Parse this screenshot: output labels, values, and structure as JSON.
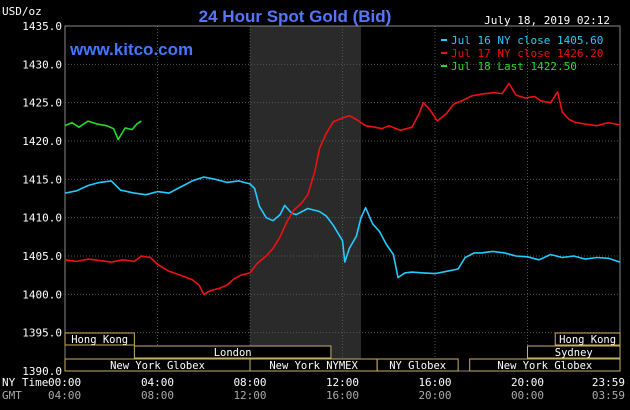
{
  "chart_data": {
    "type": "line",
    "title": "24 Hour Spot Gold (Bid)",
    "ylabel": "USD/oz",
    "source": "www.kitco.com",
    "timestamp": "July 18, 2019 02:12",
    "ylim": [
      1390,
      1435
    ],
    "yticks": [
      "1435.0",
      "1430.0",
      "1425.0",
      "1420.0",
      "1415.0",
      "1410.0",
      "1405.0",
      "1400.0",
      "1395.0",
      "1390.0"
    ],
    "xlim": [
      0,
      24
    ],
    "time_rows": [
      {
        "label": "NY Time",
        "ticks": [
          "00:00",
          "04:00",
          "08:00",
          "12:00",
          "16:00",
          "20:00",
          "23:59"
        ]
      },
      {
        "label": "GMT",
        "ticks": [
          "04:00",
          "08:00",
          "12:00",
          "16:00",
          "20:00",
          "00:00",
          "03:59"
        ]
      }
    ],
    "highlight_hours": [
      8,
      12.8
    ],
    "sessions": [
      {
        "label": "Hong Kong",
        "row": 0,
        "segments": [
          [
            0,
            3
          ]
        ]
      },
      {
        "label": "Hong Kong",
        "row": 0,
        "segments": [
          [
            21.2,
            24
          ]
        ]
      },
      {
        "label": "London",
        "row": 1,
        "segments": [
          [
            3,
            11.5
          ]
        ]
      },
      {
        "label": "Sydney",
        "row": 1,
        "segments": [
          [
            20,
            24
          ]
        ]
      },
      {
        "label": "New York Globex",
        "row": 2,
        "segments": [
          [
            0,
            8
          ]
        ]
      },
      {
        "label": "New York NYMEX",
        "row": 2,
        "segments": [
          [
            8,
            13.5
          ]
        ]
      },
      {
        "label": "NY Globex",
        "row": 2,
        "segments": [
          [
            13.5,
            17
          ]
        ]
      },
      {
        "label": "New York Globex",
        "row": 2,
        "segments": [
          [
            17.5,
            24
          ]
        ]
      }
    ],
    "series": [
      {
        "name": "Jul 16 NY close 1405.60",
        "color": "#22ccff",
        "points": [
          [
            0,
            1413.2
          ],
          [
            0.5,
            1413.5
          ],
          [
            1,
            1414.2
          ],
          [
            1.5,
            1414.6
          ],
          [
            2,
            1414.8
          ],
          [
            2.4,
            1413.6
          ],
          [
            3,
            1413.2
          ],
          [
            3.5,
            1413.0
          ],
          [
            4,
            1413.4
          ],
          [
            4.5,
            1413.2
          ],
          [
            5,
            1414.0
          ],
          [
            5.5,
            1414.8
          ],
          [
            6,
            1415.3
          ],
          [
            6.5,
            1415.0
          ],
          [
            7,
            1414.6
          ],
          [
            7.5,
            1414.8
          ],
          [
            8,
            1414.4
          ],
          [
            8.2,
            1413.8
          ],
          [
            8.4,
            1411.5
          ],
          [
            8.7,
            1410.0
          ],
          [
            9,
            1409.6
          ],
          [
            9.3,
            1410.4
          ],
          [
            9.5,
            1411.6
          ],
          [
            9.8,
            1410.6
          ],
          [
            10,
            1410.4
          ],
          [
            10.5,
            1411.2
          ],
          [
            11,
            1410.8
          ],
          [
            11.3,
            1410.2
          ],
          [
            11.6,
            1409.0
          ],
          [
            12,
            1407.0
          ],
          [
            12.1,
            1404.2
          ],
          [
            12.3,
            1406.0
          ],
          [
            12.6,
            1407.6
          ],
          [
            12.8,
            1410.0
          ],
          [
            13.0,
            1411.3
          ],
          [
            13.3,
            1409.2
          ],
          [
            13.6,
            1408.2
          ],
          [
            13.9,
            1406.5
          ],
          [
            14.2,
            1405.2
          ],
          [
            14.4,
            1402.2
          ],
          [
            14.7,
            1402.8
          ],
          [
            15,
            1402.9
          ],
          [
            15.5,
            1402.8
          ],
          [
            16,
            1402.7
          ],
          [
            16.5,
            1403.0
          ],
          [
            17,
            1403.3
          ],
          [
            17.3,
            1404.8
          ],
          [
            17.7,
            1405.4
          ],
          [
            18,
            1405.4
          ],
          [
            18.5,
            1405.6
          ],
          [
            19,
            1405.4
          ],
          [
            19.5,
            1405.0
          ],
          [
            20,
            1404.9
          ],
          [
            20.5,
            1404.5
          ],
          [
            21,
            1405.2
          ],
          [
            21.5,
            1404.8
          ],
          [
            22,
            1405.0
          ],
          [
            22.5,
            1404.6
          ],
          [
            23,
            1404.8
          ],
          [
            23.5,
            1404.7
          ],
          [
            24,
            1404.2
          ]
        ]
      },
      {
        "name": "Jul 17 NY close 1426.20",
        "color": "#ee1111",
        "points": [
          [
            0,
            1404.5
          ],
          [
            0.5,
            1404.3
          ],
          [
            1,
            1404.6
          ],
          [
            1.5,
            1404.4
          ],
          [
            2,
            1404.2
          ],
          [
            2.5,
            1404.5
          ],
          [
            3,
            1404.3
          ],
          [
            3.3,
            1405.0
          ],
          [
            3.7,
            1404.8
          ],
          [
            4,
            1403.9
          ],
          [
            4.5,
            1403.0
          ],
          [
            5,
            1402.5
          ],
          [
            5.5,
            1401.9
          ],
          [
            5.8,
            1401.2
          ],
          [
            6,
            1400.0
          ],
          [
            6.3,
            1400.5
          ],
          [
            6.7,
            1400.8
          ],
          [
            7,
            1401.2
          ],
          [
            7.3,
            1402.0
          ],
          [
            7.6,
            1402.5
          ],
          [
            8,
            1402.8
          ],
          [
            8.3,
            1404.0
          ],
          [
            8.7,
            1405.0
          ],
          [
            9,
            1406.0
          ],
          [
            9.3,
            1407.5
          ],
          [
            9.6,
            1409.5
          ],
          [
            9.9,
            1411.0
          ],
          [
            10.2,
            1411.8
          ],
          [
            10.5,
            1413.0
          ],
          [
            10.8,
            1416.0
          ],
          [
            11,
            1419.0
          ],
          [
            11.3,
            1421.0
          ],
          [
            11.6,
            1422.5
          ],
          [
            12,
            1423.0
          ],
          [
            12.3,
            1423.3
          ],
          [
            12.6,
            1422.8
          ],
          [
            13,
            1422.0
          ],
          [
            13.4,
            1421.8
          ],
          [
            13.7,
            1421.6
          ],
          [
            14,
            1422.0
          ],
          [
            14.5,
            1421.4
          ],
          [
            15,
            1421.8
          ],
          [
            15.3,
            1423.5
          ],
          [
            15.5,
            1425.0
          ],
          [
            15.8,
            1424.0
          ],
          [
            16.1,
            1422.6
          ],
          [
            16.5,
            1423.6
          ],
          [
            16.8,
            1424.8
          ],
          [
            17.2,
            1425.3
          ],
          [
            17.6,
            1425.9
          ],
          [
            18,
            1426.1
          ],
          [
            18.5,
            1426.3
          ],
          [
            18.9,
            1426.2
          ],
          [
            19.2,
            1427.5
          ],
          [
            19.5,
            1426.0
          ],
          [
            19.9,
            1425.6
          ],
          [
            20.3,
            1425.8
          ],
          [
            20.6,
            1425.2
          ],
          [
            21,
            1425.0
          ],
          [
            21.3,
            1426.4
          ],
          [
            21.5,
            1423.8
          ],
          [
            21.8,
            1422.8
          ],
          [
            22.1,
            1422.4
          ],
          [
            22.5,
            1422.2
          ],
          [
            23,
            1422.0
          ],
          [
            23.5,
            1422.4
          ],
          [
            24,
            1422.1
          ]
        ]
      },
      {
        "name": "Jul 18 Last 1422.50",
        "color": "#22dd22",
        "points": [
          [
            0,
            1422.0
          ],
          [
            0.3,
            1422.4
          ],
          [
            0.6,
            1421.8
          ],
          [
            1,
            1422.6
          ],
          [
            1.4,
            1422.2
          ],
          [
            1.8,
            1422.0
          ],
          [
            2.1,
            1421.6
          ],
          [
            2.3,
            1420.2
          ],
          [
            2.6,
            1421.7
          ],
          [
            2.9,
            1421.5
          ],
          [
            3.1,
            1422.2
          ],
          [
            3.3,
            1422.6
          ]
        ]
      }
    ]
  }
}
